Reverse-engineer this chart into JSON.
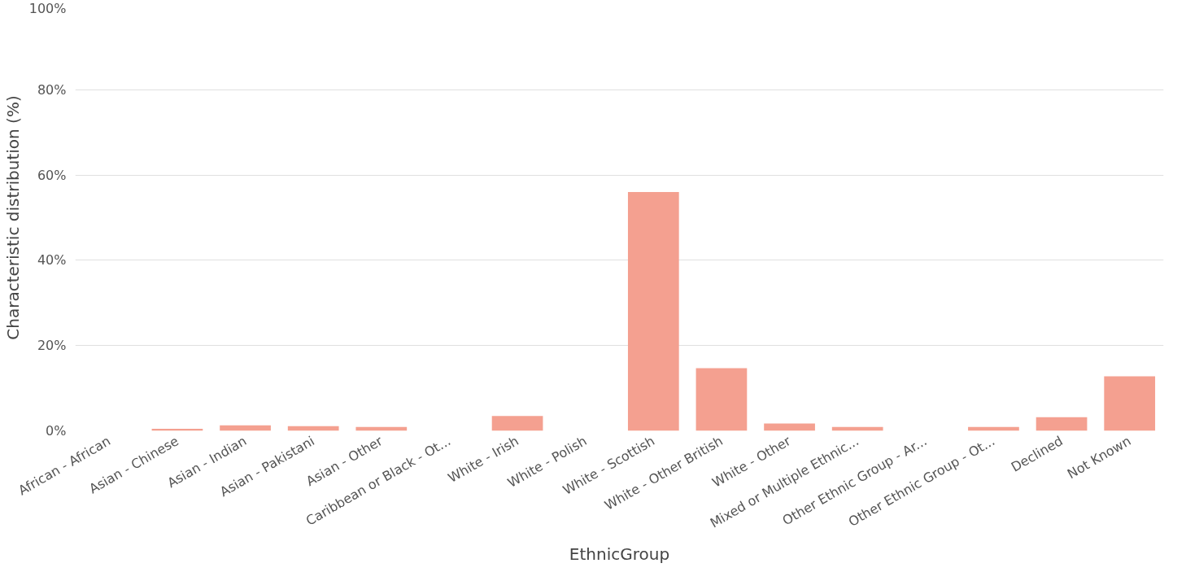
{
  "chart_data": {
    "type": "bar",
    "xlabel": "EthnicGroup",
    "ylabel": "Characteristic distribution (%)",
    "categories": [
      "African - African",
      "Asian - Chinese",
      "Asian - Indian",
      "Asian - Pakistani",
      "Asian - Other",
      "Caribbean or Black - Ot...",
      "White - Irish",
      "White - Polish",
      "White - Scottish",
      "White - Other British",
      "White - Other",
      "Mixed or Multiple Ethnic...",
      "Other Ethnic Group - Ar...",
      "Other Ethnic Group - Ot...",
      "Declined",
      "Not Known"
    ],
    "values": [
      0,
      0.5,
      1.3,
      1.1,
      0.9,
      0,
      3.5,
      0,
      56,
      14.7,
      1.7,
      0.9,
      0,
      0.9,
      3.2,
      12.8
    ],
    "color": "#f4a090",
    "ylim": [
      0,
      100
    ],
    "yticks": [
      {
        "value": 0,
        "label": "0%"
      },
      {
        "value": 20,
        "label": "20%"
      },
      {
        "value": 40,
        "label": "40%"
      },
      {
        "value": 60,
        "label": "60%"
      },
      {
        "value": 80,
        "label": "80%"
      },
      {
        "value": 100,
        "label": "100%"
      }
    ],
    "grid": "y"
  }
}
